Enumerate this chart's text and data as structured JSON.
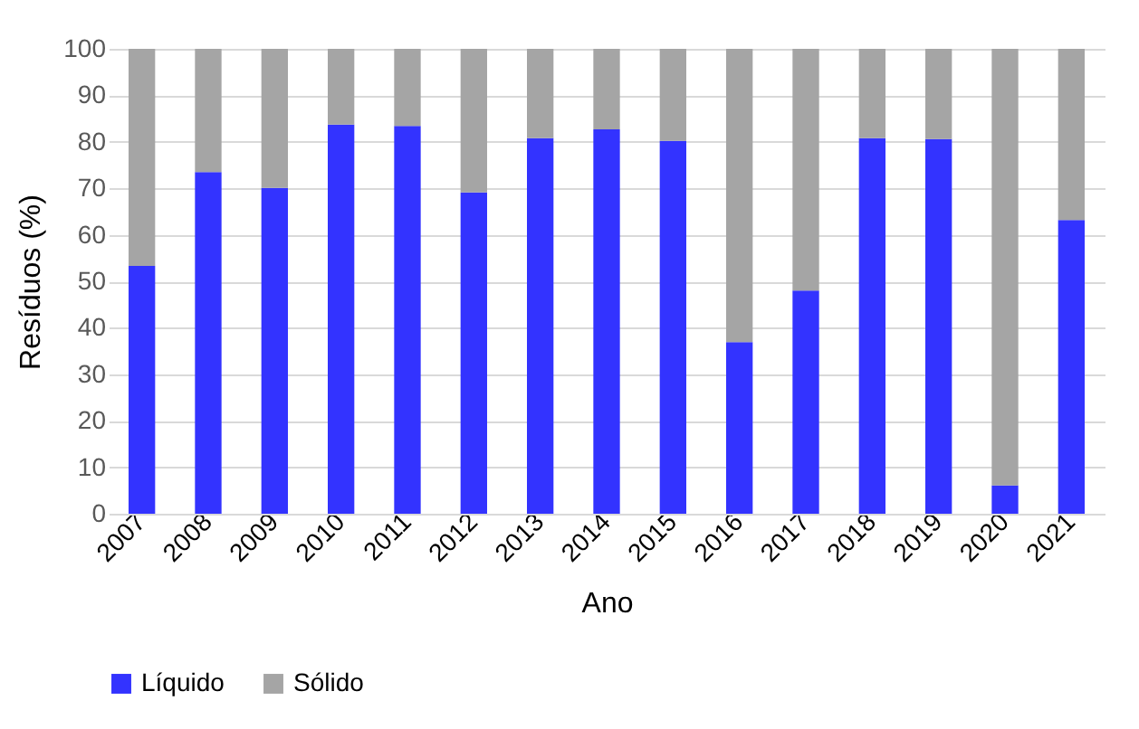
{
  "chart_data": {
    "type": "bar",
    "stacked": true,
    "xlabel": "Ano",
    "ylabel": "Resíduos (%)",
    "categories": [
      "2007",
      "2008",
      "2009",
      "2010",
      "2011",
      "2012",
      "2013",
      "2014",
      "2015",
      "2016",
      "2017",
      "2018",
      "2019",
      "2020",
      "2021"
    ],
    "series": [
      {
        "name": "Líquido",
        "color": "#3333ff",
        "values": [
          53.3,
          73.5,
          70.1,
          83.7,
          83.4,
          69.1,
          80.8,
          82.7,
          80.2,
          36.9,
          48.0,
          80.8,
          80.6,
          6.1,
          63.2
        ]
      },
      {
        "name": "Sólido",
        "color": "#a5a5a5",
        "values": [
          46.7,
          26.5,
          29.9,
          16.3,
          16.6,
          30.9,
          19.2,
          17.3,
          19.8,
          63.1,
          52.0,
          19.2,
          19.4,
          93.9,
          36.8
        ]
      }
    ],
    "ylim": [
      0,
      100
    ],
    "yticks": [
      0,
      10,
      20,
      30,
      40,
      50,
      60,
      70,
      80,
      90,
      100
    ],
    "grid": "y",
    "legend": "bottom"
  }
}
